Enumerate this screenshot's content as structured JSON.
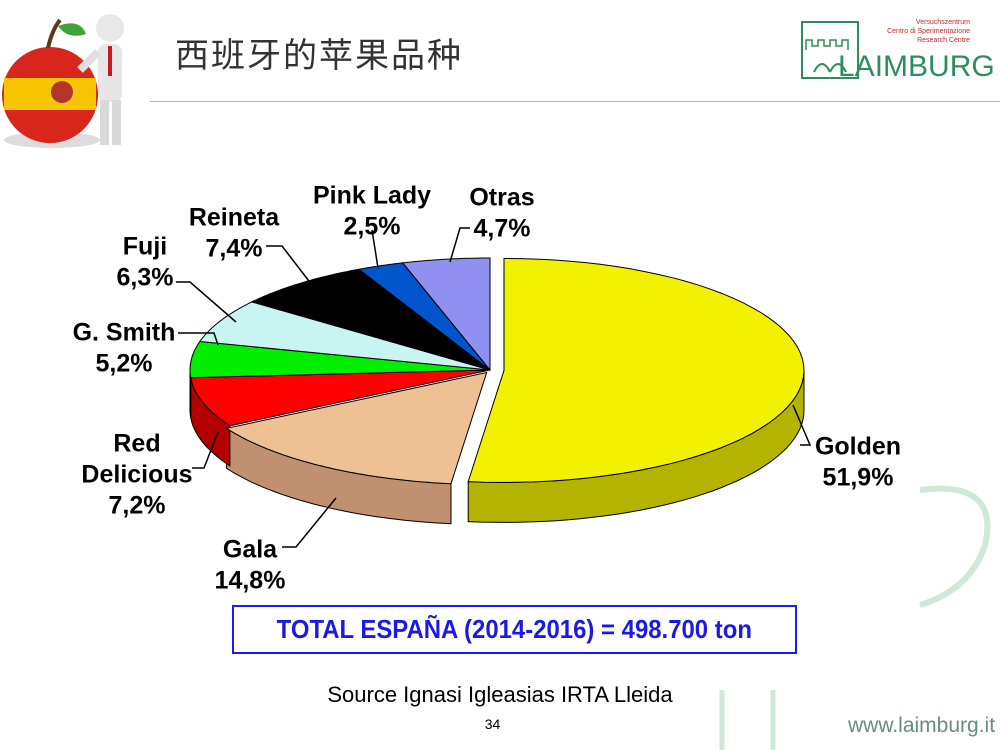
{
  "slide": {
    "title": "西班牙的苹果品种",
    "logo": {
      "line1": "Versuchszentrum",
      "line2": "Centro di Sperimentazione",
      "line3": "Research Centre",
      "wordmark": "LAIMBURG"
    },
    "total": "TOTAL ESPAÑA (2014-2016) =  498.700 ton",
    "source": "Source Ignasi Igleasias IRTA Lleida",
    "page_number": "34",
    "footer_url": "www.laimburg.it"
  },
  "chart_data": {
    "type": "pie",
    "title": "",
    "series": [
      {
        "values": [
          51.9,
          14.8,
          7.2,
          5.2,
          6.3,
          7.4,
          2.5,
          4.7
        ]
      }
    ],
    "categories": [
      "Golden",
      "Gala",
      "Red Delicious",
      "G. Smith",
      "Fuji",
      "Reineta",
      "Pink Lady",
      "Otras"
    ],
    "labels": [
      {
        "name": [
          "Golden"
        ],
        "pct": "51,9%",
        "color": "#f2f200",
        "side": "#b3b300"
      },
      {
        "name": [
          "Gala"
        ],
        "pct": "14,8%",
        "color": "#f0c095",
        "side": "#c09070"
      },
      {
        "name": [
          "Red",
          "Delicious"
        ],
        "pct": "7,2%",
        "color": "#ff0000",
        "side": "#b30000"
      },
      {
        "name": [
          "G. Smith"
        ],
        "pct": "5,2%",
        "color": "#00ee00",
        "side": "#00a800"
      },
      {
        "name": [
          "Fuji"
        ],
        "pct": "6,3%",
        "color": "#c8f5f2",
        "side": "#8fbfbc"
      },
      {
        "name": [
          "Reineta"
        ],
        "pct": "7,4%",
        "color": "#000000",
        "side": "#000000"
      },
      {
        "name": [
          "Pink Lady"
        ],
        "pct": "2,5%",
        "color": "#0055cc",
        "side": "#003a8c"
      },
      {
        "name": [
          "Otras"
        ],
        "pct": "4,7%",
        "color": "#9090f0",
        "side": "#6060b0"
      }
    ],
    "legend": "none (callout labels)",
    "style": "3d exploded pie"
  }
}
